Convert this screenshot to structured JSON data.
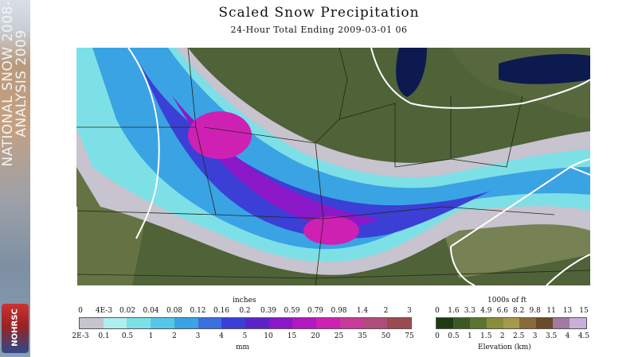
{
  "sidebar": {
    "title_line1": "NATIONAL SNOW 2008-",
    "title_line2": "ANALYSIS 2009",
    "logo_text": "NOHRSC"
  },
  "header": {
    "title": "Scaled Snow Precipitation",
    "subtitle": "24-Hour Total Ending 2009-03-01 06"
  },
  "map": {
    "lake_color": "#0d1a4f",
    "land_color": "#4f6238",
    "terrain_color": "#7f8a5b",
    "boundary_color": "#ffffff"
  },
  "precip_legend": {
    "top_unit": "inches",
    "bottom_unit": "mm",
    "inches_ticks": [
      "0",
      "4E-3",
      "0.02",
      "0.04",
      "0.08",
      "0.12",
      "0.16",
      "0.2",
      "0.39",
      "0.59",
      "0.79",
      "0.98",
      "1.4",
      "2",
      "3"
    ],
    "mm_ticks": [
      "2E-3",
      "0.1",
      "0.5",
      "1",
      "2",
      "3",
      "4",
      "5",
      "10",
      "15",
      "20",
      "25",
      "35",
      "50",
      "75"
    ],
    "colors": [
      "#c7c3cf",
      "#aeeef0",
      "#7de0e6",
      "#55c8ea",
      "#3aa3e4",
      "#3a6fe0",
      "#3b3fd6",
      "#5c24c8",
      "#8a18c8",
      "#b018c0",
      "#cf20b4",
      "#c83a9a",
      "#b04c7a",
      "#9c4a50"
    ]
  },
  "elev_legend": {
    "top_unit": "1000s of ft",
    "bottom_unit": "Elevation (km)",
    "ft_ticks": [
      "0",
      "1.6",
      "3.3",
      "4.9",
      "6.6",
      "8.2",
      "9.8",
      "11",
      "13",
      "15"
    ],
    "km_ticks": [
      "0",
      "0.5",
      "1",
      "1.5",
      "2",
      "2.5",
      "3",
      "3.5",
      "4",
      "4.5"
    ],
    "colors": [
      "#1e3a14",
      "#3c5a22",
      "#5c7432",
      "#8a8c3c",
      "#a49a4a",
      "#8a6a3a",
      "#6a4a2a",
      "#a07aa0",
      "#c8b0d8"
    ]
  }
}
